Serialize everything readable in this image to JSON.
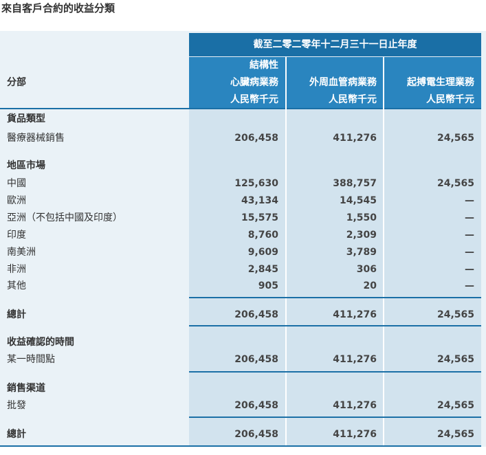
{
  "title": "來自客戶合約的收益分類",
  "header": {
    "period": "截至二零二零年十二月三十一日止年度",
    "segment_label": "分部",
    "columns": [
      [
        "結構性",
        "心臟病業務",
        "人民幣千元"
      ],
      [
        "外周血管病業務",
        "人民幣千元"
      ],
      [
        "起搏電生理業務",
        "人民幣千元"
      ]
    ]
  },
  "table": {
    "rows": [
      {
        "label": "貨品類型"
      },
      {
        "label": "醫療器械銷售",
        "values": [
          "206,458",
          "411,276",
          "24,565"
        ]
      },
      {
        "label": "地區市場"
      },
      {
        "label": "中國",
        "values": [
          "125,630",
          "388,757",
          "24,565"
        ]
      },
      {
        "label": "歐洲",
        "values": [
          "43,134",
          "14,545",
          "—"
        ]
      },
      {
        "label": "亞洲（不包括中國及印度）",
        "values": [
          "15,575",
          "1,550",
          "—"
        ]
      },
      {
        "label": "印度",
        "values": [
          "8,760",
          "2,309",
          "—"
        ]
      },
      {
        "label": "南美洲",
        "values": [
          "9,609",
          "3,789",
          "—"
        ]
      },
      {
        "label": "非洲",
        "values": [
          "2,845",
          "306",
          "—"
        ]
      },
      {
        "label": "其他",
        "values": [
          "905",
          "20",
          "—"
        ]
      },
      {
        "label": "總計",
        "values": [
          "206,458",
          "411,276",
          "24,565"
        ]
      },
      {
        "label": "收益確認的時間"
      },
      {
        "label": "某一時間點",
        "values": [
          "206,458",
          "411,276",
          "24,565"
        ]
      },
      {
        "label": "銷售渠道"
      },
      {
        "label": "批發",
        "values": [
          "206,458",
          "411,276",
          "24,565"
        ]
      },
      {
        "label": "總計",
        "values": [
          "206,458",
          "411,276",
          "24,565"
        ]
      }
    ]
  }
}
